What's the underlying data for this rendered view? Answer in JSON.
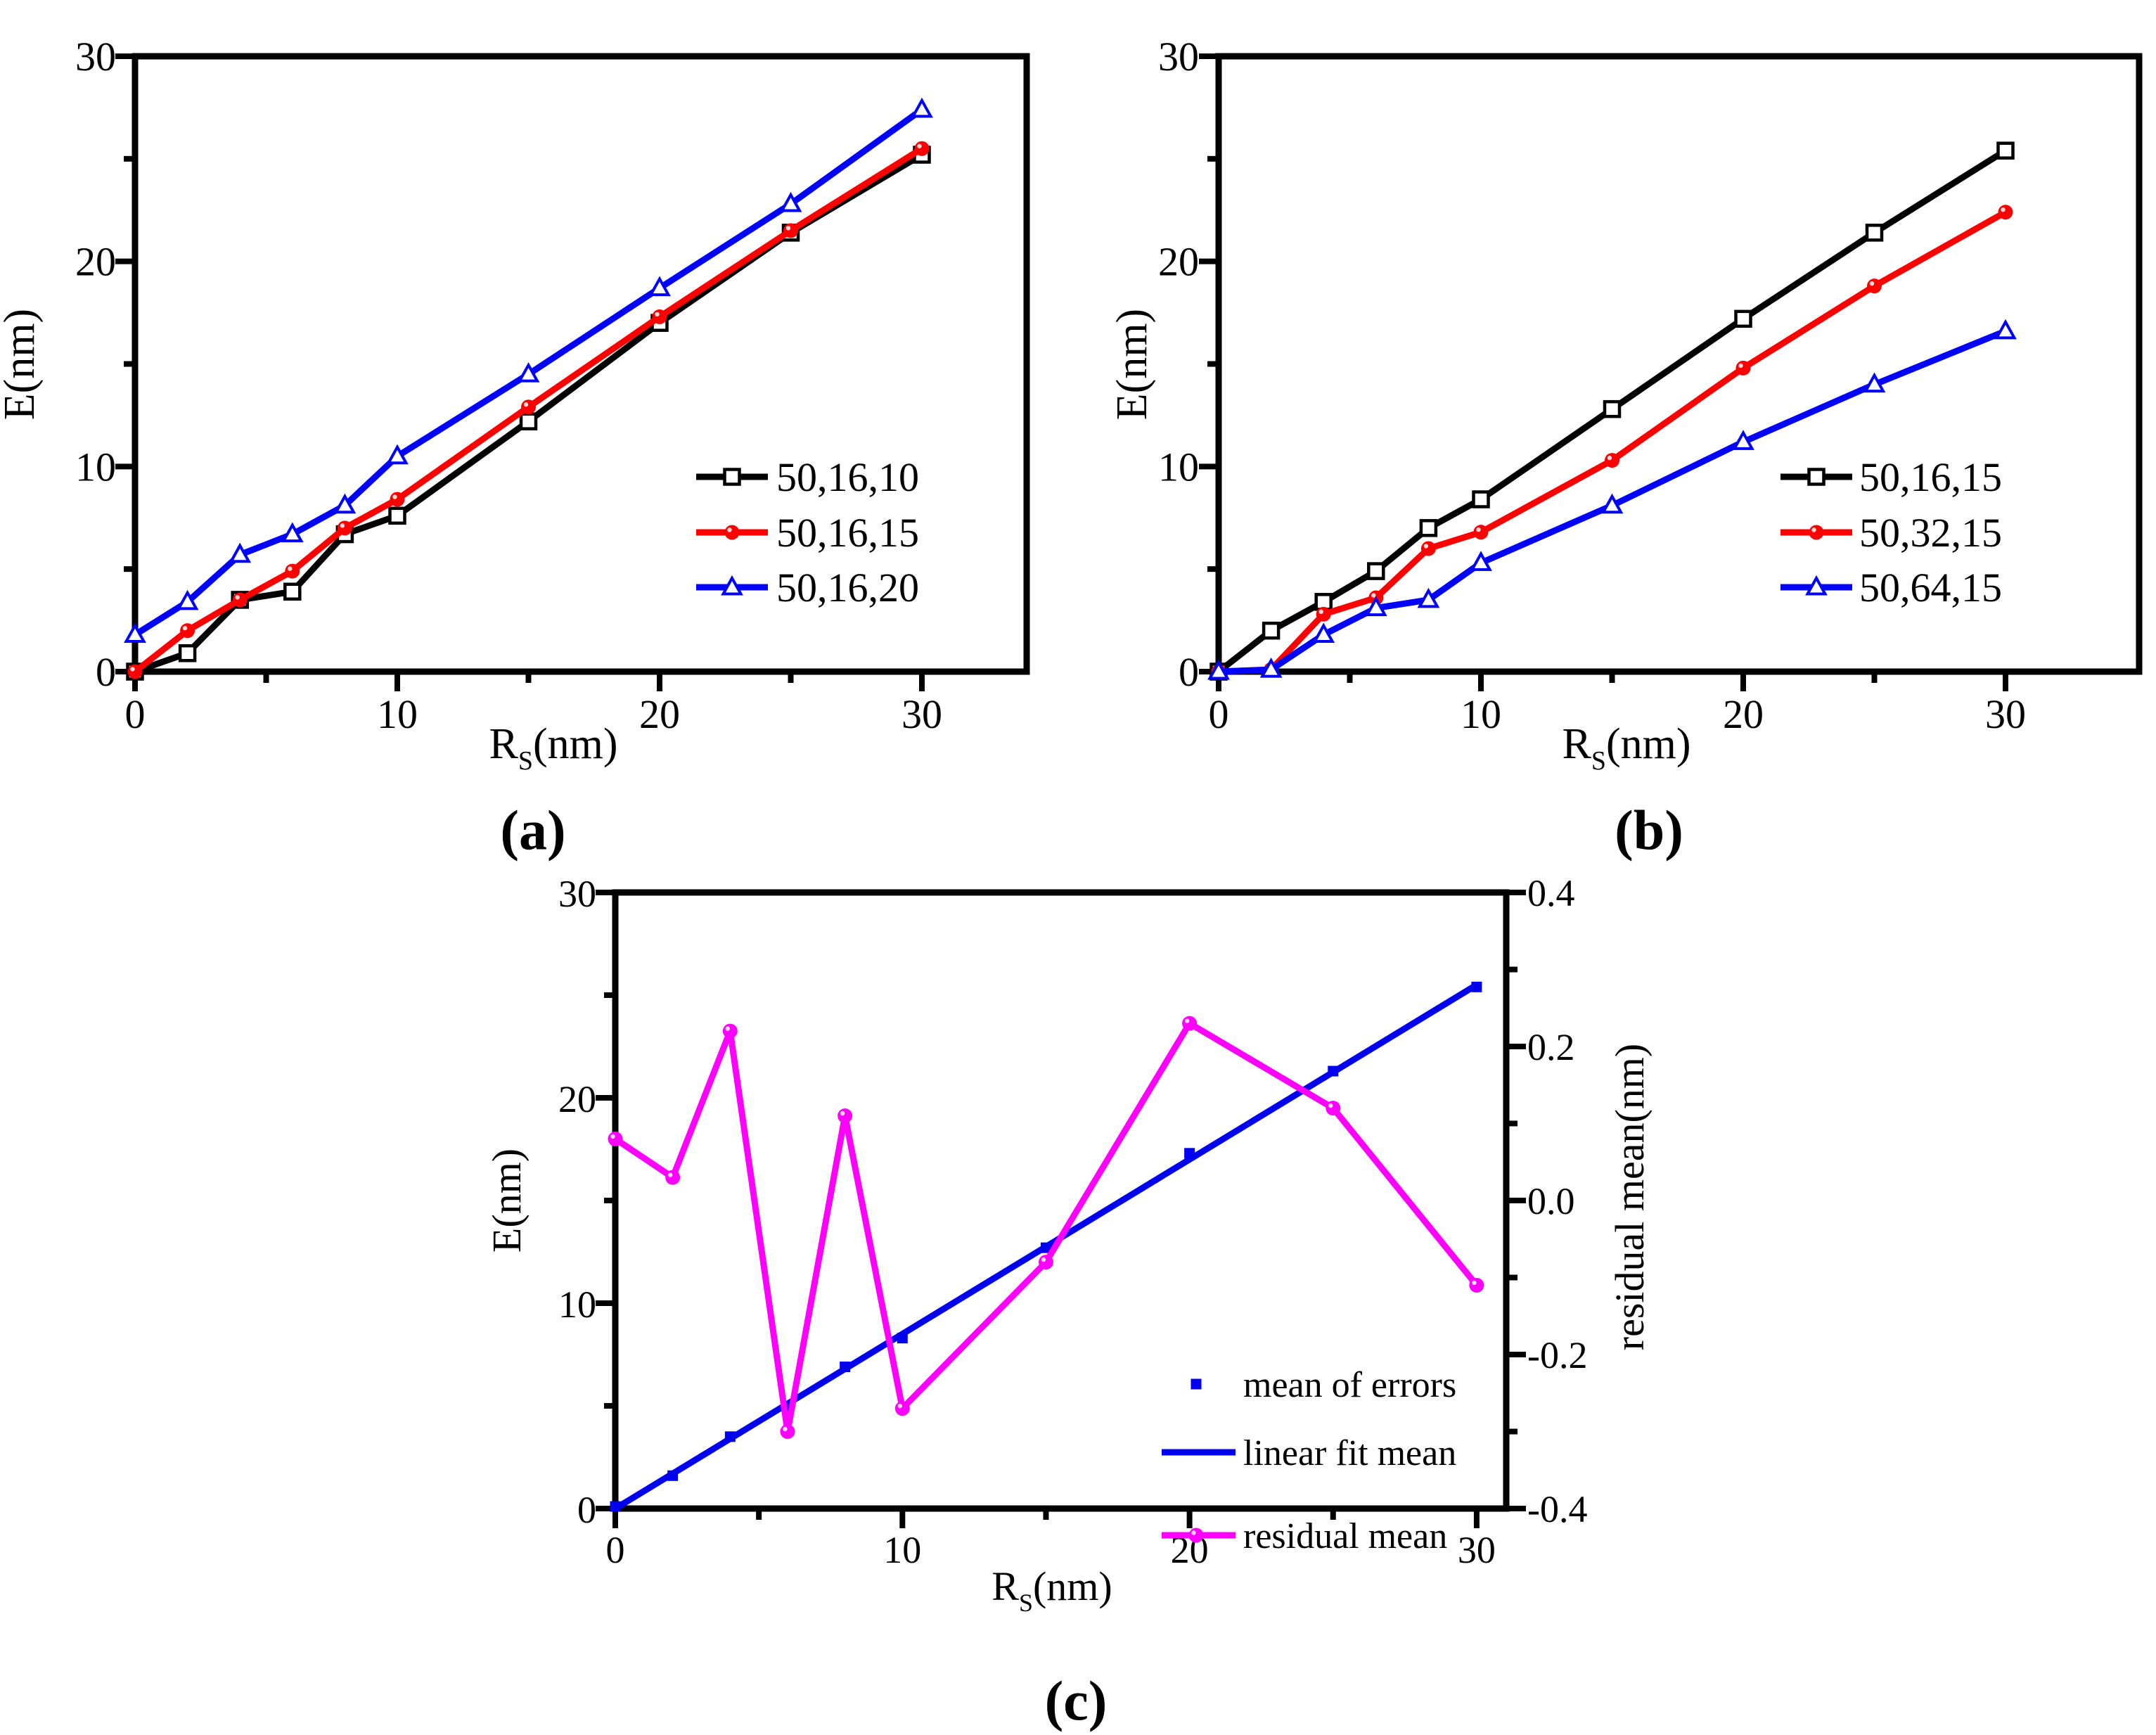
{
  "page": {
    "background": "#ffffff",
    "frame_color": "#000000"
  },
  "chart_data": [
    {
      "id": "a",
      "type": "line",
      "caption": "(a)",
      "xlabel": {
        "pre": "R",
        "sub": "S",
        "post": "(nm)"
      },
      "ylabel": "E(nm)",
      "xlim": [
        0,
        34
      ],
      "ylim": [
        0,
        30
      ],
      "xticks": [
        0,
        10,
        20,
        30
      ],
      "xtick_labels": [
        "0",
        "10",
        "20",
        "30"
      ],
      "xminor": [
        5,
        15,
        25
      ],
      "yticks": [
        0,
        10,
        20,
        30
      ],
      "ytick_labels": [
        "0",
        "10",
        "20",
        "30"
      ],
      "yminor": [
        5,
        15,
        25
      ],
      "grid": false,
      "legend_position": "inside-right",
      "x": [
        0,
        2,
        4,
        6,
        8,
        10,
        15,
        20,
        25,
        30
      ],
      "series": [
        {
          "name": "50,16,10",
          "color": "#000000",
          "marker": "open-square",
          "line": true,
          "axis": "left",
          "y": [
            0,
            0.9,
            3.5,
            3.9,
            6.7,
            7.6,
            12.2,
            17.0,
            21.4,
            25.2
          ]
        },
        {
          "name": "50,16,15",
          "color": "#ff0000",
          "marker": "ball",
          "line": true,
          "axis": "left",
          "y": [
            0,
            2.0,
            3.5,
            4.9,
            7.0,
            8.4,
            12.9,
            17.3,
            21.5,
            25.5
          ]
        },
        {
          "name": "50,16,20",
          "color": "#0000ff",
          "marker": "open-triangle",
          "line": true,
          "axis": "left",
          "y": [
            1.8,
            3.4,
            5.7,
            6.7,
            8.1,
            10.5,
            14.5,
            18.7,
            22.8,
            27.4
          ]
        }
      ]
    },
    {
      "id": "b",
      "type": "line",
      "caption": "(b)",
      "xlabel": {
        "pre": "R",
        "sub": "S",
        "post": "(nm)"
      },
      "ylabel": "E(nm)",
      "xlim": [
        0,
        35
      ],
      "ylim": [
        0,
        30
      ],
      "xticks": [
        0,
        10,
        20,
        30
      ],
      "xtick_labels": [
        "0",
        "10",
        "20",
        "30"
      ],
      "xminor": [
        5,
        15,
        25
      ],
      "yticks": [
        0,
        10,
        20,
        30
      ],
      "ytick_labels": [
        "0",
        "10",
        "20",
        "30"
      ],
      "yminor": [
        5,
        15,
        25
      ],
      "grid": false,
      "legend_position": "inside-right",
      "x": [
        0,
        2,
        4,
        6,
        8,
        10,
        15,
        20,
        25,
        30
      ],
      "series": [
        {
          "name": "50,16,15",
          "color": "#000000",
          "marker": "open-square",
          "line": true,
          "axis": "left",
          "y": [
            0,
            2.0,
            3.4,
            4.9,
            7.0,
            8.4,
            12.8,
            17.2,
            21.4,
            25.4
          ]
        },
        {
          "name": "50,32,15",
          "color": "#ff0000",
          "marker": "ball",
          "line": true,
          "axis": "left",
          "y": [
            0,
            0.1,
            2.8,
            3.6,
            6.0,
            6.8,
            10.3,
            14.8,
            18.8,
            22.4
          ]
        },
        {
          "name": "50,64,15",
          "color": "#0000ff",
          "marker": "open-triangle",
          "line": true,
          "axis": "left",
          "y": [
            0,
            0.1,
            1.8,
            3.1,
            3.5,
            5.3,
            8.1,
            11.2,
            14.0,
            16.6
          ]
        }
      ]
    },
    {
      "id": "c",
      "type": "line",
      "caption": "(c)",
      "xlabel": {
        "pre": "R",
        "sub": "S",
        "post": "(nm)"
      },
      "ylabel": "E(nm)",
      "y2label": "residual mean(nm)",
      "xlim": [
        0,
        31
      ],
      "ylim": [
        0,
        30
      ],
      "y2lim": [
        -0.4,
        0.4
      ],
      "xticks": [
        0,
        10,
        20,
        30
      ],
      "xtick_labels": [
        "0",
        "10",
        "20",
        "30"
      ],
      "xminor": [
        5,
        15,
        25
      ],
      "yticks": [
        0,
        10,
        20,
        30
      ],
      "ytick_labels": [
        "0",
        "10",
        "20",
        "30"
      ],
      "yminor": [
        5,
        15,
        25
      ],
      "y2ticks": [
        0.4,
        0.2,
        0.0,
        -0.2,
        -0.4
      ],
      "y2tick_labels": [
        "0.4",
        "0.2",
        "0.0",
        "-0.2",
        "-0.4"
      ],
      "y2minor": [
        0.3,
        0.1,
        -0.1,
        -0.3
      ],
      "grid": false,
      "legend_position": "inside-right-bottom",
      "x": [
        0,
        2,
        4,
        6,
        8,
        10,
        15,
        20,
        25,
        30
      ],
      "series": [
        {
          "name": "mean of errors",
          "color": "#0000f0",
          "marker": "filled-square",
          "line": false,
          "axis": "left",
          "x": [
            0,
            2,
            4,
            6,
            8,
            10,
            15,
            20,
            25,
            30
          ],
          "y": [
            0.1,
            1.6,
            3.5,
            4.9,
            6.9,
            8.3,
            12.7,
            17.3,
            21.3,
            25.4
          ]
        },
        {
          "name": "linear fit mean",
          "color": "#0000f0",
          "marker": null,
          "line": true,
          "axis": "left",
          "x": [
            0,
            30
          ],
          "y": [
            0,
            25.5
          ]
        },
        {
          "name": "residual mean",
          "color": "#ff00ff",
          "marker": "ball",
          "line": true,
          "axis": "right",
          "x": [
            0,
            2,
            4,
            6,
            8,
            10,
            15,
            20,
            25,
            30
          ],
          "y": [
            0.08,
            0.03,
            0.22,
            -0.3,
            0.11,
            -0.27,
            -0.08,
            0.23,
            0.12,
            -0.11
          ]
        }
      ]
    }
  ]
}
